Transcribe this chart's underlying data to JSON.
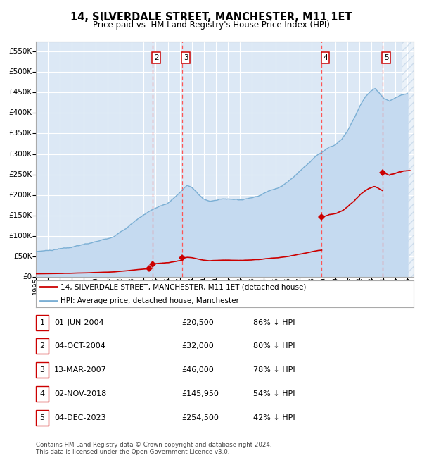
{
  "title": "14, SILVERDALE STREET, MANCHESTER, M11 1ET",
  "subtitle": "Price paid vs. HM Land Registry's House Price Index (HPI)",
  "legend_line1": "14, SILVERDALE STREET, MANCHESTER, M11 1ET (detached house)",
  "legend_line2": "HPI: Average price, detached house, Manchester",
  "footer1": "Contains HM Land Registry data © Crown copyright and database right 2024.",
  "footer2": "This data is licensed under the Open Government Licence v3.0.",
  "xlim_start": 1995.0,
  "xlim_end": 2026.5,
  "ylim_min": 0,
  "ylim_max": 575000,
  "yticks": [
    0,
    50000,
    100000,
    150000,
    200000,
    250000,
    300000,
    350000,
    400000,
    450000,
    500000,
    550000
  ],
  "ytick_labels": [
    "£0",
    "£50K",
    "£100K",
    "£150K",
    "£200K",
    "£250K",
    "£300K",
    "£350K",
    "£400K",
    "£450K",
    "£500K",
    "£550K"
  ],
  "sale_dates": [
    2004.42,
    2004.75,
    2007.2,
    2018.84,
    2023.92
  ],
  "sale_prices": [
    20500,
    32000,
    46000,
    145950,
    254500
  ],
  "sale_labels": [
    "1",
    "2",
    "3",
    "4",
    "5"
  ],
  "vline_dates": [
    2004.75,
    2007.2,
    2018.84,
    2023.92
  ],
  "vline_labels": [
    "2",
    "3",
    "4",
    "5"
  ],
  "background_color": "#ffffff",
  "plot_bg_color": "#dce8f5",
  "grid_color": "#ffffff",
  "hpi_color": "#7bafd4",
  "hpi_fill_color": "#c5daf0",
  "red_line_color": "#cc0000",
  "vline_color": "#ff5555",
  "label_box_edge": "#cc0000",
  "hatch_start": 2025.5,
  "table_data": [
    [
      "1",
      "01-JUN-2004",
      "£20,500",
      "86% ↓ HPI"
    ],
    [
      "2",
      "04-OCT-2004",
      "£32,000",
      "80% ↓ HPI"
    ],
    [
      "3",
      "13-MAR-2007",
      "£46,000",
      "78% ↓ HPI"
    ],
    [
      "4",
      "02-NOV-2018",
      "£145,950",
      "54% ↓ HPI"
    ],
    [
      "5",
      "04-DEC-2023",
      "£254,500",
      "42% ↓ HPI"
    ]
  ]
}
